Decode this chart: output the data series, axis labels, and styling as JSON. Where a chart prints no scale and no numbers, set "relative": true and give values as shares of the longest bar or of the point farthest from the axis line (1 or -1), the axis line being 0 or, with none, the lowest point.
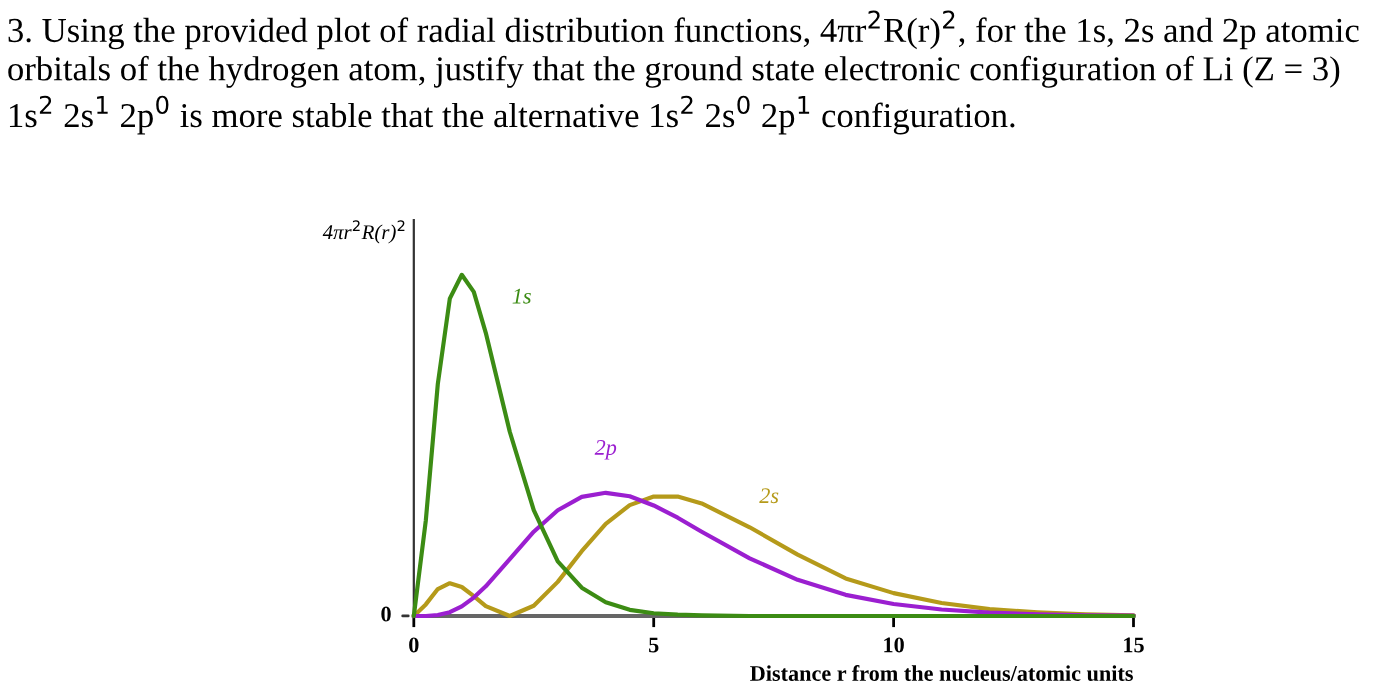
{
  "chart_data": {
    "type": "line",
    "title": "3. Using the provided plot of radial distribution functions, 4πr$^{2}$R(r)$^{2}$, for the 1s, 2s and 2p atomic orbitals of the hydrogen atom, justify that the ground state electronic configuration of Li (Z = 3) 1s$^{2}$ 2s$^{1}$ 2p$^{0}$ is more stable that the alternative 1s$^{2}$ 2s$^{0}$ 2p$^{1}$ configuration.",
    "ylabel": "4πr$^{2}$R(r)$^{2}$",
    "xlabel": "Distance r from the nucleus/atomic units",
    "relative": true,
    "x": [
      0,
      0.25,
      0.5,
      0.75,
      1,
      1.25,
      1.5,
      2,
      2.5,
      3,
      3.5,
      4,
      4.5,
      5,
      5.5,
      6,
      7,
      8,
      9,
      10,
      11,
      12,
      13,
      14,
      15
    ],
    "series": [
      {
        "name": "1s",
        "color": "#3c8c14",
        "values": [
          0,
          0.28,
          0.68,
          0.93,
          1,
          0.95,
          0.83,
          0.54,
          0.31,
          0.16,
          0.083,
          0.04,
          0.018,
          0.008,
          0.004,
          0.002,
          0,
          0,
          0,
          0,
          0,
          0,
          0,
          0,
          0
        ]
      },
      {
        "name": "2p",
        "color": "#9b1fd0",
        "values": [
          0,
          0,
          0.003,
          0.011,
          0.028,
          0.054,
          0.087,
          0.167,
          0.247,
          0.31,
          0.349,
          0.361,
          0.351,
          0.324,
          0.288,
          0.247,
          0.169,
          0.106,
          0.062,
          0.035,
          0.019,
          0.01,
          0.005,
          0.002,
          0.001
        ]
      },
      {
        "name": "2s",
        "color": "#b59a1a",
        "values": [
          0,
          0.034,
          0.079,
          0.096,
          0.085,
          0.058,
          0.029,
          0,
          0.03,
          0.1,
          0.19,
          0.27,
          0.325,
          0.35,
          0.35,
          0.33,
          0.26,
          0.18,
          0.11,
          0.067,
          0.038,
          0.02,
          0.011,
          0.005,
          0.002
        ]
      }
    ],
    "xlim": [
      0,
      15
    ],
    "xticks": [
      0,
      5,
      10,
      15
    ],
    "annotations": [
      "0"
    ],
    "legend": false,
    "grid": false,
    "marker": "none",
    "line_style": "solid"
  }
}
